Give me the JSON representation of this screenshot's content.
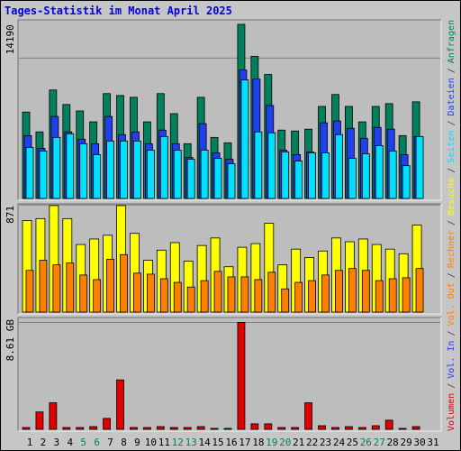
{
  "title": "Tages-Statistik im Monat April 2025",
  "legend_separator": "/",
  "chart_data": [
    {
      "type": "bar",
      "ylim": [
        0,
        18000
      ],
      "yticks": [
        14190
      ],
      "series": [
        {
          "name": "Anfragen",
          "color": "#00805c",
          "values": [
            8800,
            6820,
            11000,
            9550,
            8910,
            7820,
            10640,
            10450,
            10270,
            7820,
            10640,
            8640,
            5640,
            10270,
            6270,
            5730,
            17550,
            14360,
            12550,
            7000,
            6910,
            7090,
            9360,
            10550,
            9360,
            7820,
            9360,
            9640,
            6450,
            9820,
            null
          ]
        },
        {
          "name": "Dateien",
          "color": "#2040f0",
          "values": [
            6450,
            5180,
            8360,
            6820,
            6090,
            5640,
            8360,
            6550,
            6820,
            5640,
            7000,
            5640,
            4270,
            7640,
            4730,
            4090,
            13000,
            12090,
            9450,
            5000,
            4550,
            4820,
            7730,
            7910,
            7180,
            6180,
            7270,
            7090,
            4550,
            6360,
            null
          ]
        },
        {
          "name": "Seiten",
          "color": "#00e0ff",
          "values": [
            5270,
            4910,
            6270,
            6640,
            5640,
            4550,
            5910,
            5910,
            5910,
            5000,
            6360,
            5000,
            4090,
            5000,
            4180,
            3640,
            12000,
            6820,
            6730,
            4820,
            3910,
            4730,
            4730,
            6550,
            4180,
            4640,
            5450,
            4910,
            3450,
            6360,
            null
          ]
        }
      ]
    },
    {
      "type": "bar",
      "ylim": [
        0,
        880
      ],
      "yticks": [
        871
      ],
      "series": [
        {
          "name": "Besuche",
          "color": "#ffff00",
          "values": [
            747,
            762,
            866,
            762,
            555,
            599,
            629,
            866,
            644,
            429,
            510,
            570,
            422,
            547,
            607,
            377,
            533,
            562,
            725,
            392,
            518,
            451,
            503,
            607,
            577,
            599,
            555,
            518,
            481,
            710,
            null
          ]
        },
        {
          "name": "Rechner",
          "color": "#ff8000",
          "values": [
            348,
            429,
            392,
            407,
            311,
            274,
            437,
            474,
            326,
            318,
            281,
            252,
            215,
            266,
            340,
            296,
            296,
            274,
            333,
            200,
            252,
            266,
            311,
            348,
            363,
            348,
            266,
            281,
            289,
            363,
            null
          ]
        }
      ]
    },
    {
      "type": "bar",
      "ylim": [
        0,
        9
      ],
      "yticks": [
        {
          "value": 8.61,
          "label": "8.61 GB"
        }
      ],
      "categories": [
        "1",
        "2",
        "3",
        "4",
        "5",
        "6",
        "7",
        "8",
        "9",
        "10",
        "11",
        "12",
        "13",
        "14",
        "15",
        "16",
        "17",
        "18",
        "19",
        "20",
        "21",
        "22",
        "23",
        "24",
        "25",
        "26",
        "27",
        "28",
        "29",
        "30",
        "31"
      ],
      "category_colors": [
        "#000000",
        "#000000",
        "#000000",
        "#000000",
        "#00805c",
        "#00805c",
        "#000000",
        "#000000",
        "#000000",
        "#000000",
        "#000000",
        "#00805c",
        "#00805c",
        "#000000",
        "#000000",
        "#000000",
        "#000000",
        "#000000",
        "#00805c",
        "#00805c",
        "#000000",
        "#000000",
        "#000000",
        "#000000",
        "#000000",
        "#00805c",
        "#00805c",
        "#000000",
        "#000000",
        "#000000",
        "#000000"
      ],
      "series": [
        {
          "name": "Volumen",
          "color": "#e00000",
          "values": [
            0.29,
            1.52,
            2.25,
            0.29,
            0.29,
            0.36,
            1.01,
            4.06,
            0.29,
            0.29,
            0.36,
            0.29,
            0.29,
            0.36,
            0.22,
            0.22,
            8.61,
            0.58,
            0.58,
            0.29,
            0.29,
            2.25,
            0.43,
            0.29,
            0.36,
            0.29,
            0.43,
            0.87,
            0.22,
            0.36,
            null
          ]
        }
      ],
      "legend_extra": [
        {
          "name": "Vol. In",
          "color": "#2040f0"
        },
        {
          "name": "Vol. Out",
          "color": "#ff8000"
        }
      ]
    }
  ]
}
